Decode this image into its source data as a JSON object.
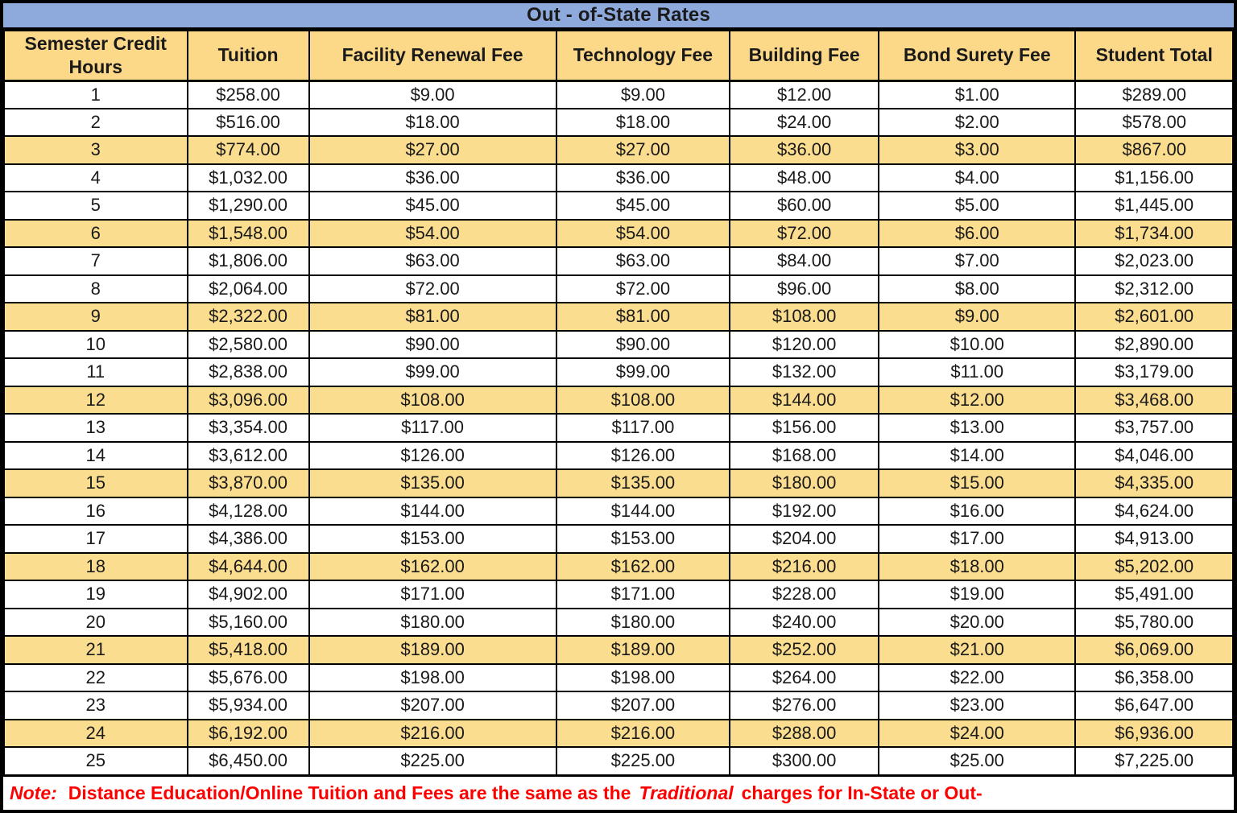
{
  "title": "Out - of-State Rates",
  "columns": [
    "Semester Credit Hours",
    "Tuition",
    "Facility Renewal Fee",
    "Technology Fee",
    "Building Fee",
    "Bond Surety Fee",
    "Student Total"
  ],
  "table": {
    "rows": [
      [
        "1",
        "$258.00",
        "$9.00",
        "$9.00",
        "$12.00",
        "$1.00",
        "$289.00"
      ],
      [
        "2",
        "$516.00",
        "$18.00",
        "$18.00",
        "$24.00",
        "$2.00",
        "$578.00"
      ],
      [
        "3",
        "$774.00",
        "$27.00",
        "$27.00",
        "$36.00",
        "$3.00",
        "$867.00"
      ],
      [
        "4",
        "$1,032.00",
        "$36.00",
        "$36.00",
        "$48.00",
        "$4.00",
        "$1,156.00"
      ],
      [
        "5",
        "$1,290.00",
        "$45.00",
        "$45.00",
        "$60.00",
        "$5.00",
        "$1,445.00"
      ],
      [
        "6",
        "$1,548.00",
        "$54.00",
        "$54.00",
        "$72.00",
        "$6.00",
        "$1,734.00"
      ],
      [
        "7",
        "$1,806.00",
        "$63.00",
        "$63.00",
        "$84.00",
        "$7.00",
        "$2,023.00"
      ],
      [
        "8",
        "$2,064.00",
        "$72.00",
        "$72.00",
        "$96.00",
        "$8.00",
        "$2,312.00"
      ],
      [
        "9",
        "$2,322.00",
        "$81.00",
        "$81.00",
        "$108.00",
        "$9.00",
        "$2,601.00"
      ],
      [
        "10",
        "$2,580.00",
        "$90.00",
        "$90.00",
        "$120.00",
        "$10.00",
        "$2,890.00"
      ],
      [
        "11",
        "$2,838.00",
        "$99.00",
        "$99.00",
        "$132.00",
        "$11.00",
        "$3,179.00"
      ],
      [
        "12",
        "$3,096.00",
        "$108.00",
        "$108.00",
        "$144.00",
        "$12.00",
        "$3,468.00"
      ],
      [
        "13",
        "$3,354.00",
        "$117.00",
        "$117.00",
        "$156.00",
        "$13.00",
        "$3,757.00"
      ],
      [
        "14",
        "$3,612.00",
        "$126.00",
        "$126.00",
        "$168.00",
        "$14.00",
        "$4,046.00"
      ],
      [
        "15",
        "$3,870.00",
        "$135.00",
        "$135.00",
        "$180.00",
        "$15.00",
        "$4,335.00"
      ],
      [
        "16",
        "$4,128.00",
        "$144.00",
        "$144.00",
        "$192.00",
        "$16.00",
        "$4,624.00"
      ],
      [
        "17",
        "$4,386.00",
        "$153.00",
        "$153.00",
        "$204.00",
        "$17.00",
        "$4,913.00"
      ],
      [
        "18",
        "$4,644.00",
        "$162.00",
        "$162.00",
        "$216.00",
        "$18.00",
        "$5,202.00"
      ],
      [
        "19",
        "$4,902.00",
        "$171.00",
        "$171.00",
        "$228.00",
        "$19.00",
        "$5,491.00"
      ],
      [
        "20",
        "$5,160.00",
        "$180.00",
        "$180.00",
        "$240.00",
        "$20.00",
        "$5,780.00"
      ],
      [
        "21",
        "$5,418.00",
        "$189.00",
        "$189.00",
        "$252.00",
        "$21.00",
        "$6,069.00"
      ],
      [
        "22",
        "$5,676.00",
        "$198.00",
        "$198.00",
        "$264.00",
        "$22.00",
        "$6,358.00"
      ],
      [
        "23",
        "$5,934.00",
        "$207.00",
        "$207.00",
        "$276.00",
        "$23.00",
        "$6,647.00"
      ],
      [
        "24",
        "$6,192.00",
        "$216.00",
        "$216.00",
        "$288.00",
        "$24.00",
        "$6,936.00"
      ],
      [
        "25",
        "$6,450.00",
        "$225.00",
        "$225.00",
        "$300.00",
        "$25.00",
        "$7,225.00"
      ]
    ],
    "highlight_every_n": 3
  },
  "note": {
    "label": "Note:",
    "text_before": "Distance Education/Online Tuition and Fees are the same as the",
    "italic_word": "Traditional",
    "text_after": "charges for In-State or Out-"
  },
  "colors": {
    "title_bg": "#8EA9DC",
    "header_bg": "#FCD989",
    "stripe_bg": "#FBDD90",
    "note_red": "#FF0000",
    "border": "#000000"
  }
}
